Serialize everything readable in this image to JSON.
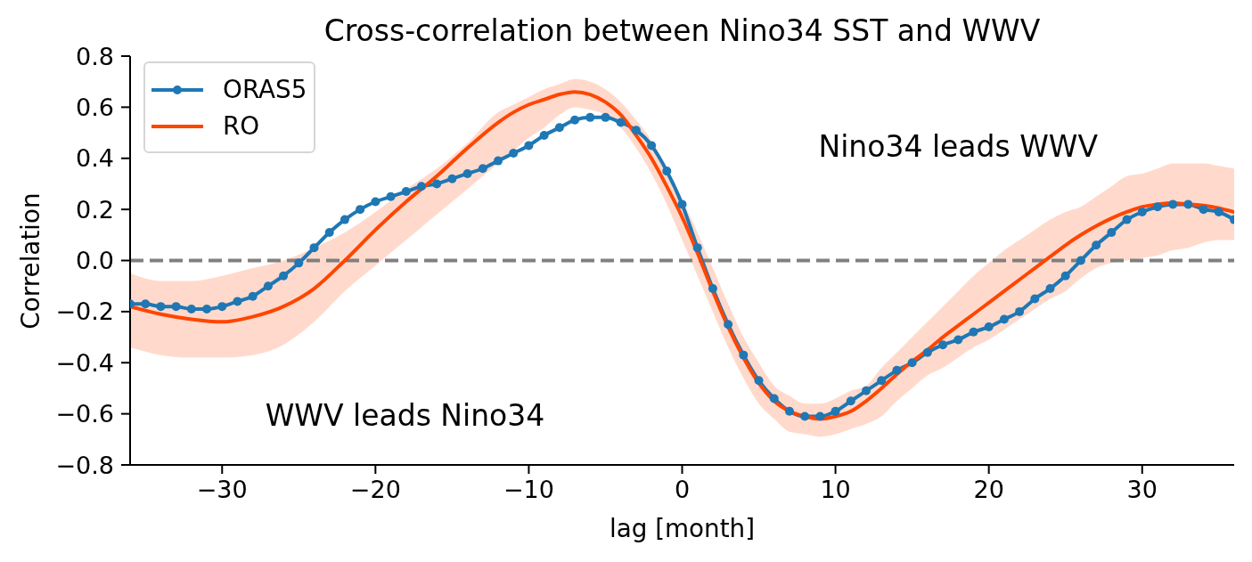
{
  "chart_data": {
    "type": "line",
    "title": "Cross-correlation between Nino34 SST and WWV",
    "xlabel": "lag [month]",
    "ylabel": "Correlation",
    "annotations": [
      "WWV leads Nino34",
      "Nino34 leads WWV"
    ],
    "x": [
      -36,
      -35,
      -34,
      -33,
      -32,
      -31,
      -30,
      -29,
      -28,
      -27,
      -26,
      -25,
      -24,
      -23,
      -22,
      -21,
      -20,
      -19,
      -18,
      -17,
      -16,
      -15,
      -14,
      -13,
      -12,
      -11,
      -10,
      -9,
      -8,
      -7,
      -6,
      -5,
      -4,
      -3,
      -2,
      -1,
      0,
      1,
      2,
      3,
      4,
      5,
      6,
      7,
      8,
      9,
      10,
      11,
      12,
      13,
      14,
      15,
      16,
      17,
      18,
      19,
      20,
      21,
      22,
      23,
      24,
      25,
      26,
      27,
      28,
      29,
      30,
      31,
      32,
      33,
      34,
      35,
      36
    ],
    "series": [
      {
        "name": "ORAS5",
        "color": "#1f77b4",
        "marker": "circle",
        "values": [
          -0.17,
          -0.17,
          -0.18,
          -0.18,
          -0.19,
          -0.19,
          -0.18,
          -0.16,
          -0.14,
          -0.1,
          -0.06,
          -0.01,
          0.05,
          0.11,
          0.16,
          0.2,
          0.23,
          0.25,
          0.27,
          0.29,
          0.3,
          0.32,
          0.34,
          0.36,
          0.39,
          0.42,
          0.45,
          0.49,
          0.52,
          0.55,
          0.56,
          0.56,
          0.54,
          0.51,
          0.45,
          0.35,
          0.22,
          0.05,
          -0.11,
          -0.25,
          -0.37,
          -0.47,
          -0.54,
          -0.59,
          -0.61,
          -0.61,
          -0.59,
          -0.55,
          -0.51,
          -0.47,
          -0.43,
          -0.4,
          -0.36,
          -0.33,
          -0.31,
          -0.28,
          -0.26,
          -0.23,
          -0.2,
          -0.15,
          -0.11,
          -0.06,
          0.0,
          0.06,
          0.11,
          0.16,
          0.19,
          0.21,
          0.22,
          0.22,
          0.2,
          0.19,
          0.16
        ]
      },
      {
        "name": "RO",
        "color": "#ff4500",
        "x": [
          -36,
          -34,
          -32,
          -30,
          -28,
          -26,
          -24,
          -22,
          -20,
          -18,
          -16,
          -14,
          -12,
          -11,
          -10,
          -9,
          -8,
          -7,
          -6,
          -5,
          -4,
          -3,
          -2,
          -1,
          0,
          1,
          2,
          3,
          4,
          5,
          6,
          7,
          8,
          9,
          10,
          11,
          12,
          13,
          14,
          15,
          16,
          17,
          18,
          19,
          20,
          21,
          22,
          23,
          24,
          25,
          26,
          27,
          28,
          29,
          30,
          31,
          32,
          33,
          34,
          35,
          36
        ],
        "values": [
          -0.18,
          -0.21,
          -0.23,
          -0.24,
          -0.22,
          -0.18,
          -0.11,
          0.0,
          0.12,
          0.23,
          0.33,
          0.44,
          0.54,
          0.58,
          0.61,
          0.63,
          0.65,
          0.66,
          0.65,
          0.62,
          0.57,
          0.49,
          0.4,
          0.29,
          0.17,
          0.03,
          -0.12,
          -0.26,
          -0.38,
          -0.48,
          -0.55,
          -0.59,
          -0.61,
          -0.62,
          -0.61,
          -0.59,
          -0.55,
          -0.5,
          -0.445,
          -0.395,
          -0.35,
          -0.3,
          -0.255,
          -0.21,
          -0.165,
          -0.12,
          -0.075,
          -0.03,
          0.015,
          0.06,
          0.1,
          0.135,
          0.165,
          0.19,
          0.21,
          0.22,
          0.225,
          0.22,
          0.215,
          0.205,
          0.19
        ],
        "lower": [
          -0.34,
          -0.37,
          -0.38,
          -0.38,
          -0.37,
          -0.33,
          -0.24,
          -0.12,
          -0.02,
          0.08,
          0.18,
          0.28,
          0.38,
          0.43,
          0.48,
          0.52,
          0.57,
          0.6,
          0.59,
          0.57,
          0.52,
          0.44,
          0.34,
          0.22,
          0.08,
          -0.06,
          -0.2,
          -0.34,
          -0.46,
          -0.56,
          -0.62,
          -0.67,
          -0.68,
          -0.69,
          -0.68,
          -0.66,
          -0.64,
          -0.61,
          -0.55,
          -0.5,
          -0.45,
          -0.42,
          -0.38,
          -0.34,
          -0.31,
          -0.27,
          -0.23,
          -0.19,
          -0.15,
          -0.12,
          -0.07,
          -0.03,
          -0.01,
          0.0,
          0.01,
          0.02,
          0.04,
          0.05,
          0.07,
          0.08,
          0.08
        ],
        "upper": [
          -0.05,
          -0.08,
          -0.08,
          -0.06,
          -0.03,
          0.0,
          0.05,
          0.11,
          0.19,
          0.28,
          0.36,
          0.46,
          0.58,
          0.61,
          0.64,
          0.67,
          0.69,
          0.71,
          0.7,
          0.67,
          0.62,
          0.55,
          0.47,
          0.36,
          0.24,
          0.11,
          -0.03,
          -0.17,
          -0.3,
          -0.4,
          -0.49,
          -0.53,
          -0.56,
          -0.56,
          -0.54,
          -0.51,
          -0.49,
          -0.42,
          -0.36,
          -0.3,
          -0.24,
          -0.18,
          -0.12,
          -0.06,
          -0.01,
          0.04,
          0.08,
          0.12,
          0.16,
          0.19,
          0.21,
          0.25,
          0.29,
          0.33,
          0.34,
          0.36,
          0.38,
          0.38,
          0.38,
          0.37,
          0.36
        ]
      }
    ],
    "xlim": [
      -36,
      36
    ],
    "xticks": [
      {
        "value": -30,
        "label": "−30"
      },
      {
        "value": -20,
        "label": "−20"
      },
      {
        "value": -10,
        "label": "−10"
      },
      0,
      10,
      20,
      30
    ],
    "ylim": [
      -0.8,
      0.8
    ],
    "yticks": [
      {
        "value": -0.8,
        "label": "−0.8"
      },
      {
        "value": -0.6,
        "label": "−0.6"
      },
      {
        "value": -0.4,
        "label": "−0.4"
      },
      {
        "value": -0.2,
        "label": "−0.2"
      },
      {
        "value": 0,
        "label": "0.0"
      },
      0.2,
      0.4,
      0.6,
      0.8
    ],
    "ref_lines": [
      {
        "axis": "y",
        "value": 0,
        "color": "#808080",
        "line_style": "dashed"
      }
    ],
    "legend": "top left",
    "line_style": "solid"
  }
}
